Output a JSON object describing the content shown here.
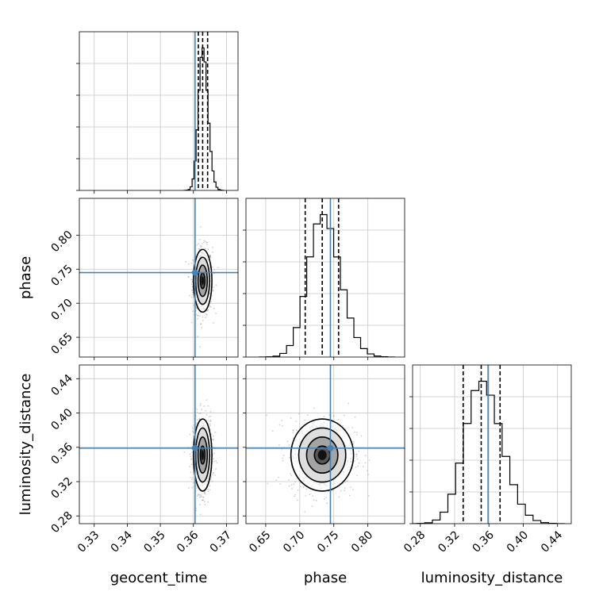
{
  "chart_data": {
    "type": "corner",
    "parameters": [
      "geocent_time",
      "phase",
      "luminosity_distance"
    ],
    "labels": {
      "geocent_time": "geocent_time",
      "phase": "phase",
      "luminosity_distance": "luminosity_distance"
    },
    "ranges": {
      "geocent_time": [
        0.3255,
        0.3735
      ],
      "phase": [
        0.621,
        0.854
      ],
      "luminosity_distance": [
        0.271,
        0.456
      ]
    },
    "ticks": {
      "geocent_time": [
        0.33,
        0.34,
        0.35,
        0.36,
        0.37
      ],
      "phase": [
        0.65,
        0.7,
        0.75,
        0.8
      ],
      "luminosity_distance": [
        0.28,
        0.32,
        0.36,
        0.4,
        0.44
      ]
    },
    "tick_labels": {
      "geocent_time": [
        "0.33",
        "0.34",
        "0.35",
        "0.36",
        "0.37"
      ],
      "phase": [
        "0.65",
        "0.70",
        "0.75",
        "0.80"
      ],
      "luminosity_distance": [
        "0.28",
        "0.32",
        "0.36",
        "0.40",
        "0.44"
      ]
    },
    "truths": {
      "geocent_time": 0.3605,
      "phase": 0.745,
      "luminosity_distance": 0.359
    },
    "quantiles": {
      "geocent_time": [
        0.3615,
        0.3628,
        0.3643
      ],
      "phase": [
        0.708,
        0.733,
        0.757
      ],
      "luminosity_distance": [
        0.33,
        0.351,
        0.373
      ]
    },
    "centers": {
      "geocent_time": 0.3628,
      "phase": 0.733,
      "luminosity_distance": 0.351
    },
    "sigmas": {
      "geocent_time": 0.0014,
      "phase": 0.023,
      "luminosity_distance": 0.021
    },
    "contour_levels_sigma": [
      0.5,
      1.0,
      1.5,
      2.0
    ],
    "truth_color": "#4682b4",
    "grid": true
  }
}
